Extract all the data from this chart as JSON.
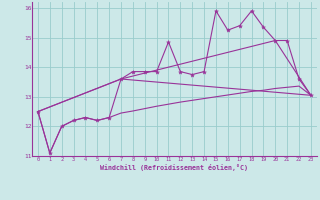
{
  "xlabel": "Windchill (Refroidissement éolien,°C)",
  "bg_color": "#cce8e8",
  "line_color": "#993399",
  "grid_color": "#99cccc",
  "xlim": [
    -0.5,
    23.5
  ],
  "ylim": [
    11,
    16.2
  ],
  "yticks": [
    11,
    12,
    13,
    14,
    15,
    16
  ],
  "xticks": [
    0,
    1,
    2,
    3,
    4,
    5,
    6,
    7,
    8,
    9,
    10,
    11,
    12,
    13,
    14,
    15,
    16,
    17,
    18,
    19,
    20,
    21,
    22,
    23
  ],
  "series1_x": [
    0,
    1,
    2,
    3,
    4,
    5,
    6,
    7,
    8,
    9,
    10,
    11,
    12,
    13,
    14,
    15,
    16,
    17,
    18,
    19,
    20,
    21,
    22,
    23
  ],
  "series1_y": [
    12.5,
    11.1,
    12.0,
    12.2,
    12.3,
    12.2,
    12.3,
    13.6,
    13.85,
    13.85,
    13.85,
    14.85,
    13.85,
    13.75,
    13.85,
    15.9,
    15.25,
    15.4,
    15.9,
    15.35,
    14.9,
    14.9,
    13.6,
    13.05
  ],
  "series2_x": [
    0,
    1,
    2,
    3,
    4,
    5,
    6,
    7,
    8,
    9,
    10,
    11,
    12,
    13,
    14,
    15,
    16,
    17,
    18,
    19,
    20,
    21,
    22,
    23
  ],
  "series2_y": [
    12.5,
    11.1,
    12.0,
    12.2,
    12.3,
    12.2,
    12.3,
    12.45,
    12.52,
    12.6,
    12.68,
    12.75,
    12.82,
    12.88,
    12.94,
    13.0,
    13.06,
    13.12,
    13.18,
    13.22,
    13.28,
    13.32,
    13.36,
    13.05
  ],
  "series3_x": [
    0,
    7,
    23
  ],
  "series3_y": [
    12.5,
    13.6,
    13.05
  ],
  "series4_x": [
    0,
    7,
    20,
    23
  ],
  "series4_y": [
    12.5,
    13.6,
    14.9,
    13.05
  ]
}
